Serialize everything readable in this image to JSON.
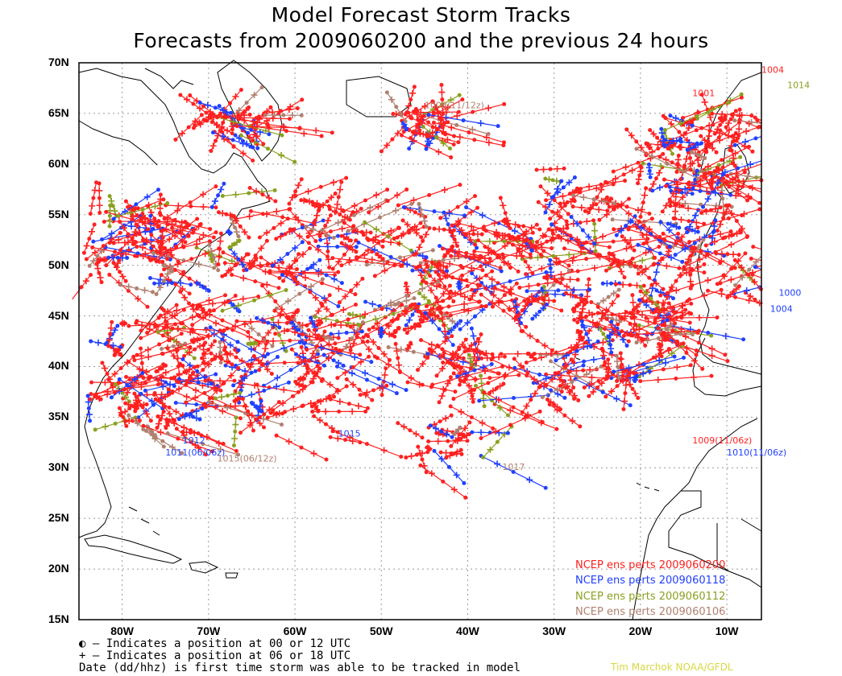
{
  "title_line1": "Model Forecast Storm Tracks",
  "title_line2": "Forecasts from 2009060200 and the previous 24 hours",
  "lat_labels": [
    "70N",
    "65N",
    "60N",
    "55N",
    "50N",
    "45N",
    "40N",
    "35N",
    "30N",
    "25N",
    "20N",
    "15N"
  ],
  "lon_labels": [
    "80W",
    "70W",
    "60W",
    "50W",
    "40W",
    "30W",
    "20W",
    "10W"
  ],
  "legend": [
    {
      "label": "NCEP ens perts 2009060200",
      "color": "#ff2020"
    },
    {
      "label": "NCEP ens perts 2009060118",
      "color": "#2040ff"
    },
    {
      "label": "NCEP ens perts 2009060112",
      "color": "#8aa020"
    },
    {
      "label": "NCEP ens perts 2009060106",
      "color": "#b08070"
    }
  ],
  "notes": [
    "◐ – Indicates a position at 00 or 12 UTC",
    "+ – Indicates a position at 06 or 18 UTC",
    "Date (dd/hhz) is first time storm was able to be tracked in model"
  ],
  "credit": "Tim Marchok NOAA/GFDL",
  "annotations": [
    {
      "text": "1010(11/06z)",
      "color": "#2040ff",
      "lon": -10,
      "lat": 31.2
    },
    {
      "text": "1009(11/06z)",
      "color": "#ff2020",
      "lon": -14,
      "lat": 32.4
    },
    {
      "text": "1011(06/06z)",
      "color": "#2040ff",
      "lon": -75,
      "lat": 31.2
    },
    {
      "text": "1015(06/12z)",
      "color": "#b08070",
      "lon": -69,
      "lat": 30.6
    },
    {
      "text": "1008(11/12z)",
      "color": "#b08070",
      "lon": -45,
      "lat": 65.5
    },
    {
      "text": "1001",
      "color": "#ff2020",
      "lon": -14,
      "lat": 66.7
    },
    {
      "text": "1004",
      "color": "#ff2020",
      "lon": -6,
      "lat": 69.0
    },
    {
      "text": "1014",
      "color": "#8aa020",
      "lon": -3,
      "lat": 67.5
    },
    {
      "text": "1000",
      "color": "#2040ff",
      "lon": -4,
      "lat": 47.0
    },
    {
      "text": "1004",
      "color": "#2040ff",
      "lon": -5,
      "lat": 45.4
    },
    {
      "text": "1017",
      "color": "#b08070",
      "lon": -36,
      "lat": 29.8
    },
    {
      "text": "1012",
      "color": "#2040ff",
      "lon": -73,
      "lat": 32.4
    },
    {
      "text": "1015",
      "color": "#2040ff",
      "lon": -55,
      "lat": 33.1
    }
  ],
  "map_extent": {
    "lon_min": -85,
    "lon_max": -6,
    "lat_min": 15,
    "lat_max": 70
  },
  "tracks_note": ""
}
